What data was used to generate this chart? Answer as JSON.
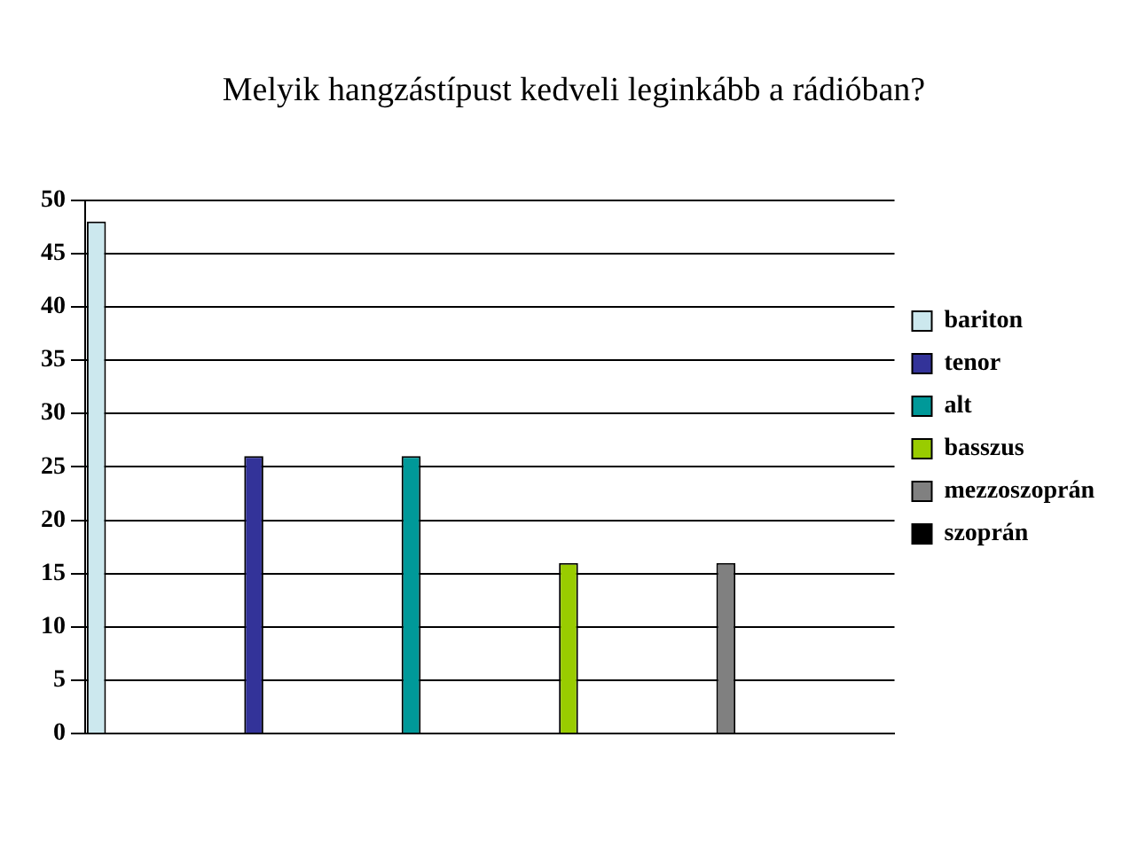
{
  "chart_data": {
    "type": "bar",
    "title": "Melyik hangzástípust kedveli leginkább a rádióban?",
    "categories": [
      null,
      null,
      null,
      null,
      null,
      null
    ],
    "series": [
      {
        "name": "bariton",
        "color": "#cce8ee",
        "values": [
          48,
          null,
          null,
          null,
          null,
          null
        ]
      },
      {
        "name": "tenor",
        "color": "#333399",
        "values": [
          null,
          26,
          null,
          null,
          null,
          null
        ]
      },
      {
        "name": "alt",
        "color": "#009999",
        "values": [
          null,
          null,
          26,
          null,
          null,
          null
        ]
      },
      {
        "name": "basszus",
        "color": "#99cc00",
        "values": [
          null,
          null,
          null,
          16,
          null,
          null
        ]
      },
      {
        "name": "mezzoszoprán",
        "color": "#808080",
        "values": [
          null,
          null,
          null,
          null,
          16,
          null
        ]
      },
      {
        "name": "szoprán",
        "color": "#000000",
        "values": [
          null,
          null,
          null,
          null,
          null,
          0
        ]
      }
    ],
    "ylim": [
      0,
      50
    ],
    "yticks": [
      0,
      5,
      10,
      15,
      20,
      25,
      30,
      35,
      40,
      45,
      50
    ],
    "grid": "y",
    "legend": "right"
  }
}
